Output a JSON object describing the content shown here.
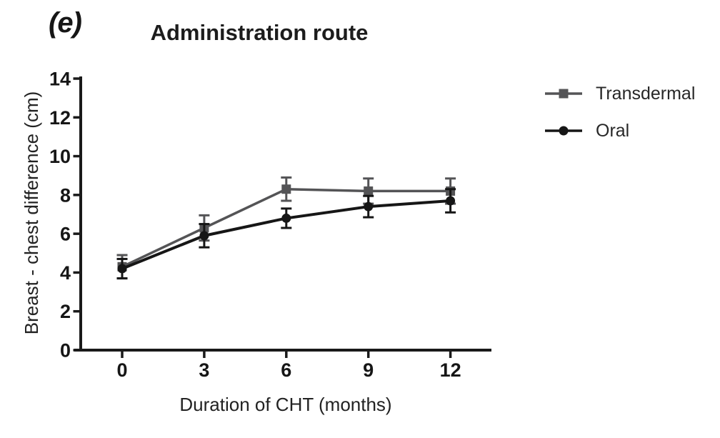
{
  "panel_label": "(e)",
  "title": "Administration route",
  "axis_color": "#1a1a1a",
  "legend": {
    "entries": [
      {
        "label": "Transdermal",
        "marker": "square",
        "color": "#545456"
      },
      {
        "label": "Oral",
        "marker": "circle",
        "color": "#161616"
      }
    ]
  },
  "chart_data": {
    "type": "line",
    "title": "Administration route",
    "xlabel": "Duration of CHT (months)",
    "ylabel": "Breast - chest difference (cm)",
    "x": [
      0,
      3,
      6,
      9,
      12
    ],
    "xticks": [
      0,
      3,
      6,
      9,
      12
    ],
    "yticks": [
      0,
      2,
      4,
      6,
      8,
      10,
      12,
      14
    ],
    "xlim": [
      0,
      12
    ],
    "ylim": [
      0,
      14
    ],
    "grid": false,
    "legend_position": "right",
    "error_bars": "symmetric, with caps",
    "series": [
      {
        "name": "Transdermal",
        "marker": "square",
        "color": "#545456",
        "values": [
          4.3,
          6.3,
          8.3,
          8.2,
          8.2
        ],
        "errors": [
          0.6,
          0.65,
          0.6,
          0.65,
          0.65
        ]
      },
      {
        "name": "Oral",
        "marker": "circle",
        "color": "#161616",
        "values": [
          4.2,
          5.9,
          6.8,
          7.4,
          7.7
        ],
        "errors": [
          0.5,
          0.6,
          0.5,
          0.55,
          0.6
        ]
      }
    ]
  }
}
